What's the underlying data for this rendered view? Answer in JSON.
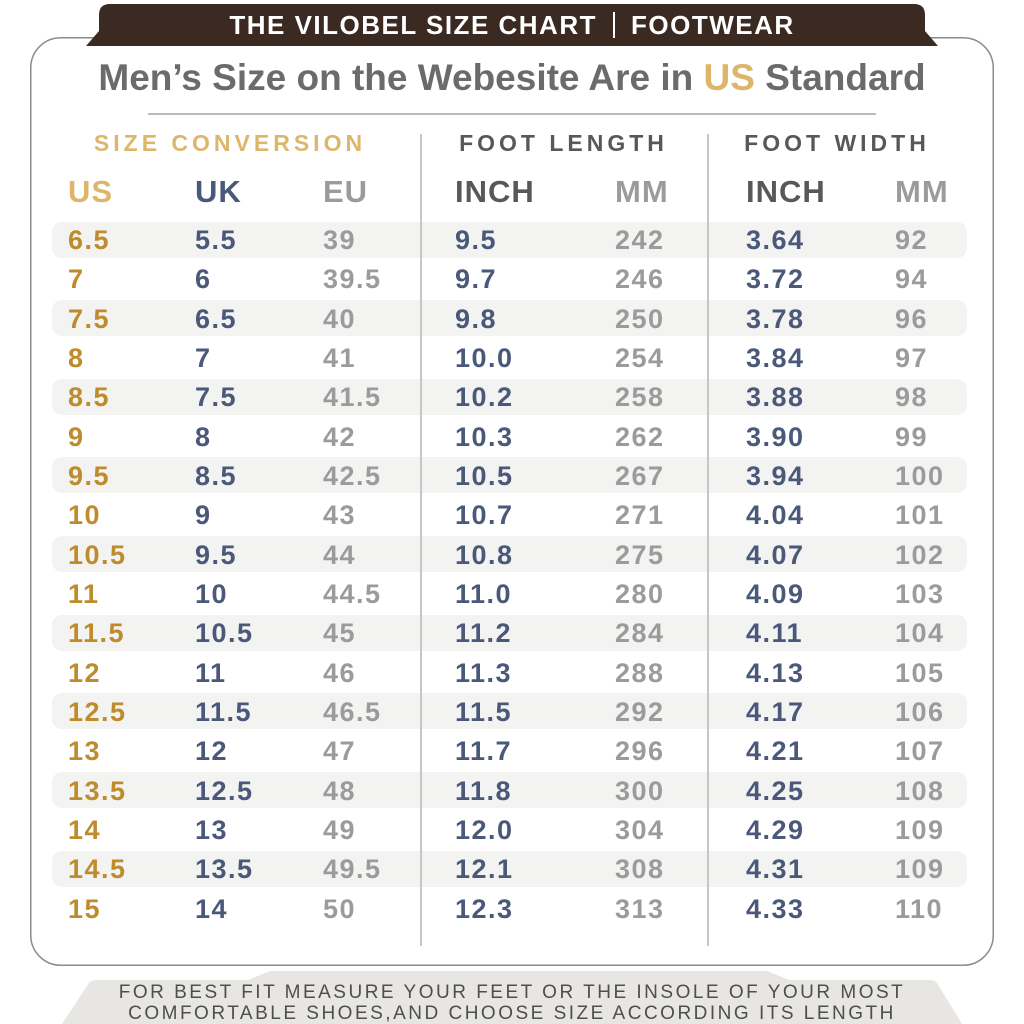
{
  "banner": {
    "title": "THE VILOBEL SIZE CHART",
    "category": "FOOTWEAR"
  },
  "heading": {
    "prefix": "Men’s Size on the Webesite Are in ",
    "highlight": "US",
    "suffix": " Standard"
  },
  "chart_data": {
    "type": "table",
    "title": "Men’s Size on the Webesite Are in US Standard",
    "groups": [
      {
        "label": "SIZE CONVERSION"
      },
      {
        "label": "FOOT LENGTH"
      },
      {
        "label": "FOOT WIDTH"
      }
    ],
    "columns": [
      "US",
      "UK",
      "EU",
      "INCH",
      "MM",
      "INCH",
      "MM"
    ],
    "rows": [
      [
        "6.5",
        "5.5",
        "39",
        "9.5",
        "242",
        "3.64",
        "92"
      ],
      [
        "7",
        "6",
        "39.5",
        "9.7",
        "246",
        "3.72",
        "94"
      ],
      [
        "7.5",
        "6.5",
        "40",
        "9.8",
        "250",
        "3.78",
        "96"
      ],
      [
        "8",
        "7",
        "41",
        "10.0",
        "254",
        "3.84",
        "97"
      ],
      [
        "8.5",
        "7.5",
        "41.5",
        "10.2",
        "258",
        "3.88",
        "98"
      ],
      [
        "9",
        "8",
        "42",
        "10.3",
        "262",
        "3.90",
        "99"
      ],
      [
        "9.5",
        "8.5",
        "42.5",
        "10.5",
        "267",
        "3.94",
        "100"
      ],
      [
        "10",
        "9",
        "43",
        "10.7",
        "271",
        "4.04",
        "101"
      ],
      [
        "10.5",
        "9.5",
        "44",
        "10.8",
        "275",
        "4.07",
        "102"
      ],
      [
        "11",
        "10",
        "44.5",
        "11.0",
        "280",
        "4.09",
        "103"
      ],
      [
        "11.5",
        "10.5",
        "45",
        "11.2",
        "284",
        "4.11",
        "104"
      ],
      [
        "12",
        "11",
        "46",
        "11.3",
        "288",
        "4.13",
        "105"
      ],
      [
        "12.5",
        "11.5",
        "46.5",
        "11.5",
        "292",
        "4.17",
        "106"
      ],
      [
        "13",
        "12",
        "47",
        "11.7",
        "296",
        "4.21",
        "107"
      ],
      [
        "13.5",
        "12.5",
        "48",
        "11.8",
        "300",
        "4.25",
        "108"
      ],
      [
        "14",
        "13",
        "49",
        "12.0",
        "304",
        "4.29",
        "109"
      ],
      [
        "14.5",
        "13.5",
        "49.5",
        "12.1",
        "308",
        "4.31",
        "109"
      ],
      [
        "15",
        "14",
        "50",
        "12.3",
        "313",
        "4.33",
        "110"
      ]
    ]
  },
  "footer": {
    "line1": "FOR BEST FIT MEASURE YOUR FEET OR THE INSOLE OF YOUR MOST",
    "line2": "COMFORTABLE SHOES,AND CHOOSE SIZE ACCORDING ITS LENGTH"
  },
  "colors": {
    "banner-brown": "#3B2A22",
    "gold-light": "#DDB66A",
    "gold-dark": "#BE8B2D",
    "navy": "#4A5879",
    "gray": "#9B9B9B",
    "head-dark": "#58585A",
    "title-gray": "#6B6B6B",
    "stripe": "#F3F3F1",
    "footer-band": "#E7E6E3",
    "footer-gray": "#4E4E4E",
    "card-border": "#8B8B8B"
  }
}
